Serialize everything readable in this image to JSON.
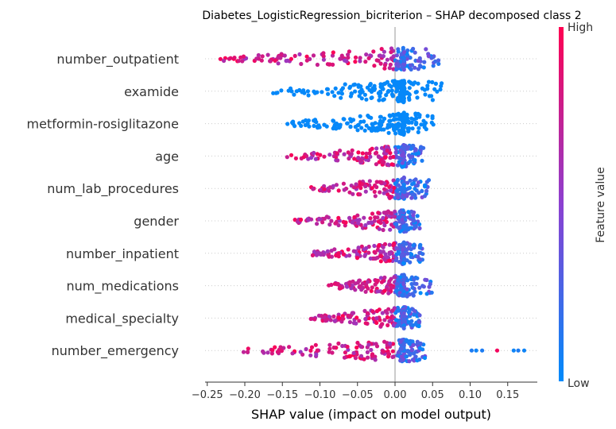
{
  "chart_data": {
    "type": "scatter",
    "subtype": "shap-beeswarm",
    "title": "Diabetes_LogisticRegression_bicriterion – SHAP decomposed class 2",
    "xlabel": "SHAP value (impact on model output)",
    "ylabel": "",
    "xlim": [
      -0.255,
      0.19
    ],
    "xticks": [
      -0.25,
      -0.2,
      -0.15,
      -0.1,
      -0.05,
      0.0,
      0.05,
      0.1,
      0.15
    ],
    "xtick_labels": [
      "−0.25",
      "−0.20",
      "−0.15",
      "−0.10",
      "−0.05",
      "0.00",
      "0.05",
      "0.10",
      "0.15"
    ],
    "colorbar": {
      "label": "Feature value",
      "high": "High",
      "low": "Low",
      "high_color": "#ff0051",
      "low_color": "#008bfb"
    },
    "features": [
      {
        "name": "number_outpatient",
        "min": -0.235,
        "max": 0.065
      },
      {
        "name": "examide",
        "min": -0.17,
        "max": 0.063
      },
      {
        "name": "metformin-rosiglitazone",
        "min": -0.148,
        "max": 0.052
      },
      {
        "name": "age",
        "min": -0.147,
        "max": 0.038
      },
      {
        "name": "num_lab_procedures",
        "min": -0.112,
        "max": 0.045
      },
      {
        "name": "gender",
        "min": -0.135,
        "max": 0.033
      },
      {
        "name": "number_inpatient",
        "min": -0.113,
        "max": 0.037
      },
      {
        "name": "num_medications",
        "min": -0.09,
        "max": 0.05
      },
      {
        "name": "medical_specialty",
        "min": -0.113,
        "max": 0.033
      },
      {
        "name": "number_emergency",
        "min": -0.202,
        "max": 0.172
      }
    ]
  }
}
